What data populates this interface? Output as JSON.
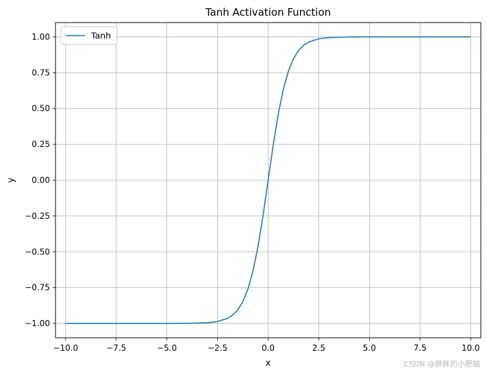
{
  "chart_data": {
    "type": "line",
    "title": "Tanh Activation Function",
    "xlabel": "x",
    "ylabel": "y",
    "xlim": [
      -10.5,
      10.5
    ],
    "ylim": [
      -1.1,
      1.1
    ],
    "xticks": [
      -10,
      -7.5,
      -5,
      -2.5,
      0,
      2.5,
      5,
      7.5,
      10
    ],
    "xtick_labels": [
      "−10.0",
      "−7.5",
      "−5.0",
      "−2.5",
      "0.0",
      "2.5",
      "5.0",
      "7.5",
      "10.0"
    ],
    "yticks": [
      -1,
      -0.75,
      -0.5,
      -0.25,
      0,
      0.25,
      0.5,
      0.75,
      1
    ],
    "ytick_labels": [
      "−1.00",
      "−0.75",
      "−0.50",
      "−0.25",
      "0.00",
      "0.25",
      "0.50",
      "0.75",
      "1.00"
    ],
    "grid": true,
    "legend_position": "top-left",
    "series": [
      {
        "name": "Tanh",
        "color": "#1f77b4",
        "x": [
          -10,
          -8,
          -6,
          -5,
          -4,
          -3,
          -2.5,
          -2,
          -1.75,
          -1.5,
          -1.25,
          -1,
          -0.75,
          -0.5,
          -0.25,
          0,
          0.25,
          0.5,
          0.75,
          1,
          1.25,
          1.5,
          1.75,
          2,
          2.5,
          3,
          4,
          5,
          6,
          8,
          10
        ],
        "y": [
          -1.0,
          -1.0,
          -1.0,
          -0.9999,
          -0.9993,
          -0.9951,
          -0.9866,
          -0.964,
          -0.9414,
          -0.9051,
          -0.8483,
          -0.7616,
          -0.6351,
          -0.4621,
          -0.2449,
          0.0,
          0.2449,
          0.4621,
          0.6351,
          0.7616,
          0.8483,
          0.9051,
          0.9414,
          0.964,
          0.9866,
          0.9951,
          0.9993,
          0.9999,
          1.0,
          1.0,
          1.0
        ]
      }
    ]
  },
  "watermark": "CSDN @胖胖的小肥猫"
}
